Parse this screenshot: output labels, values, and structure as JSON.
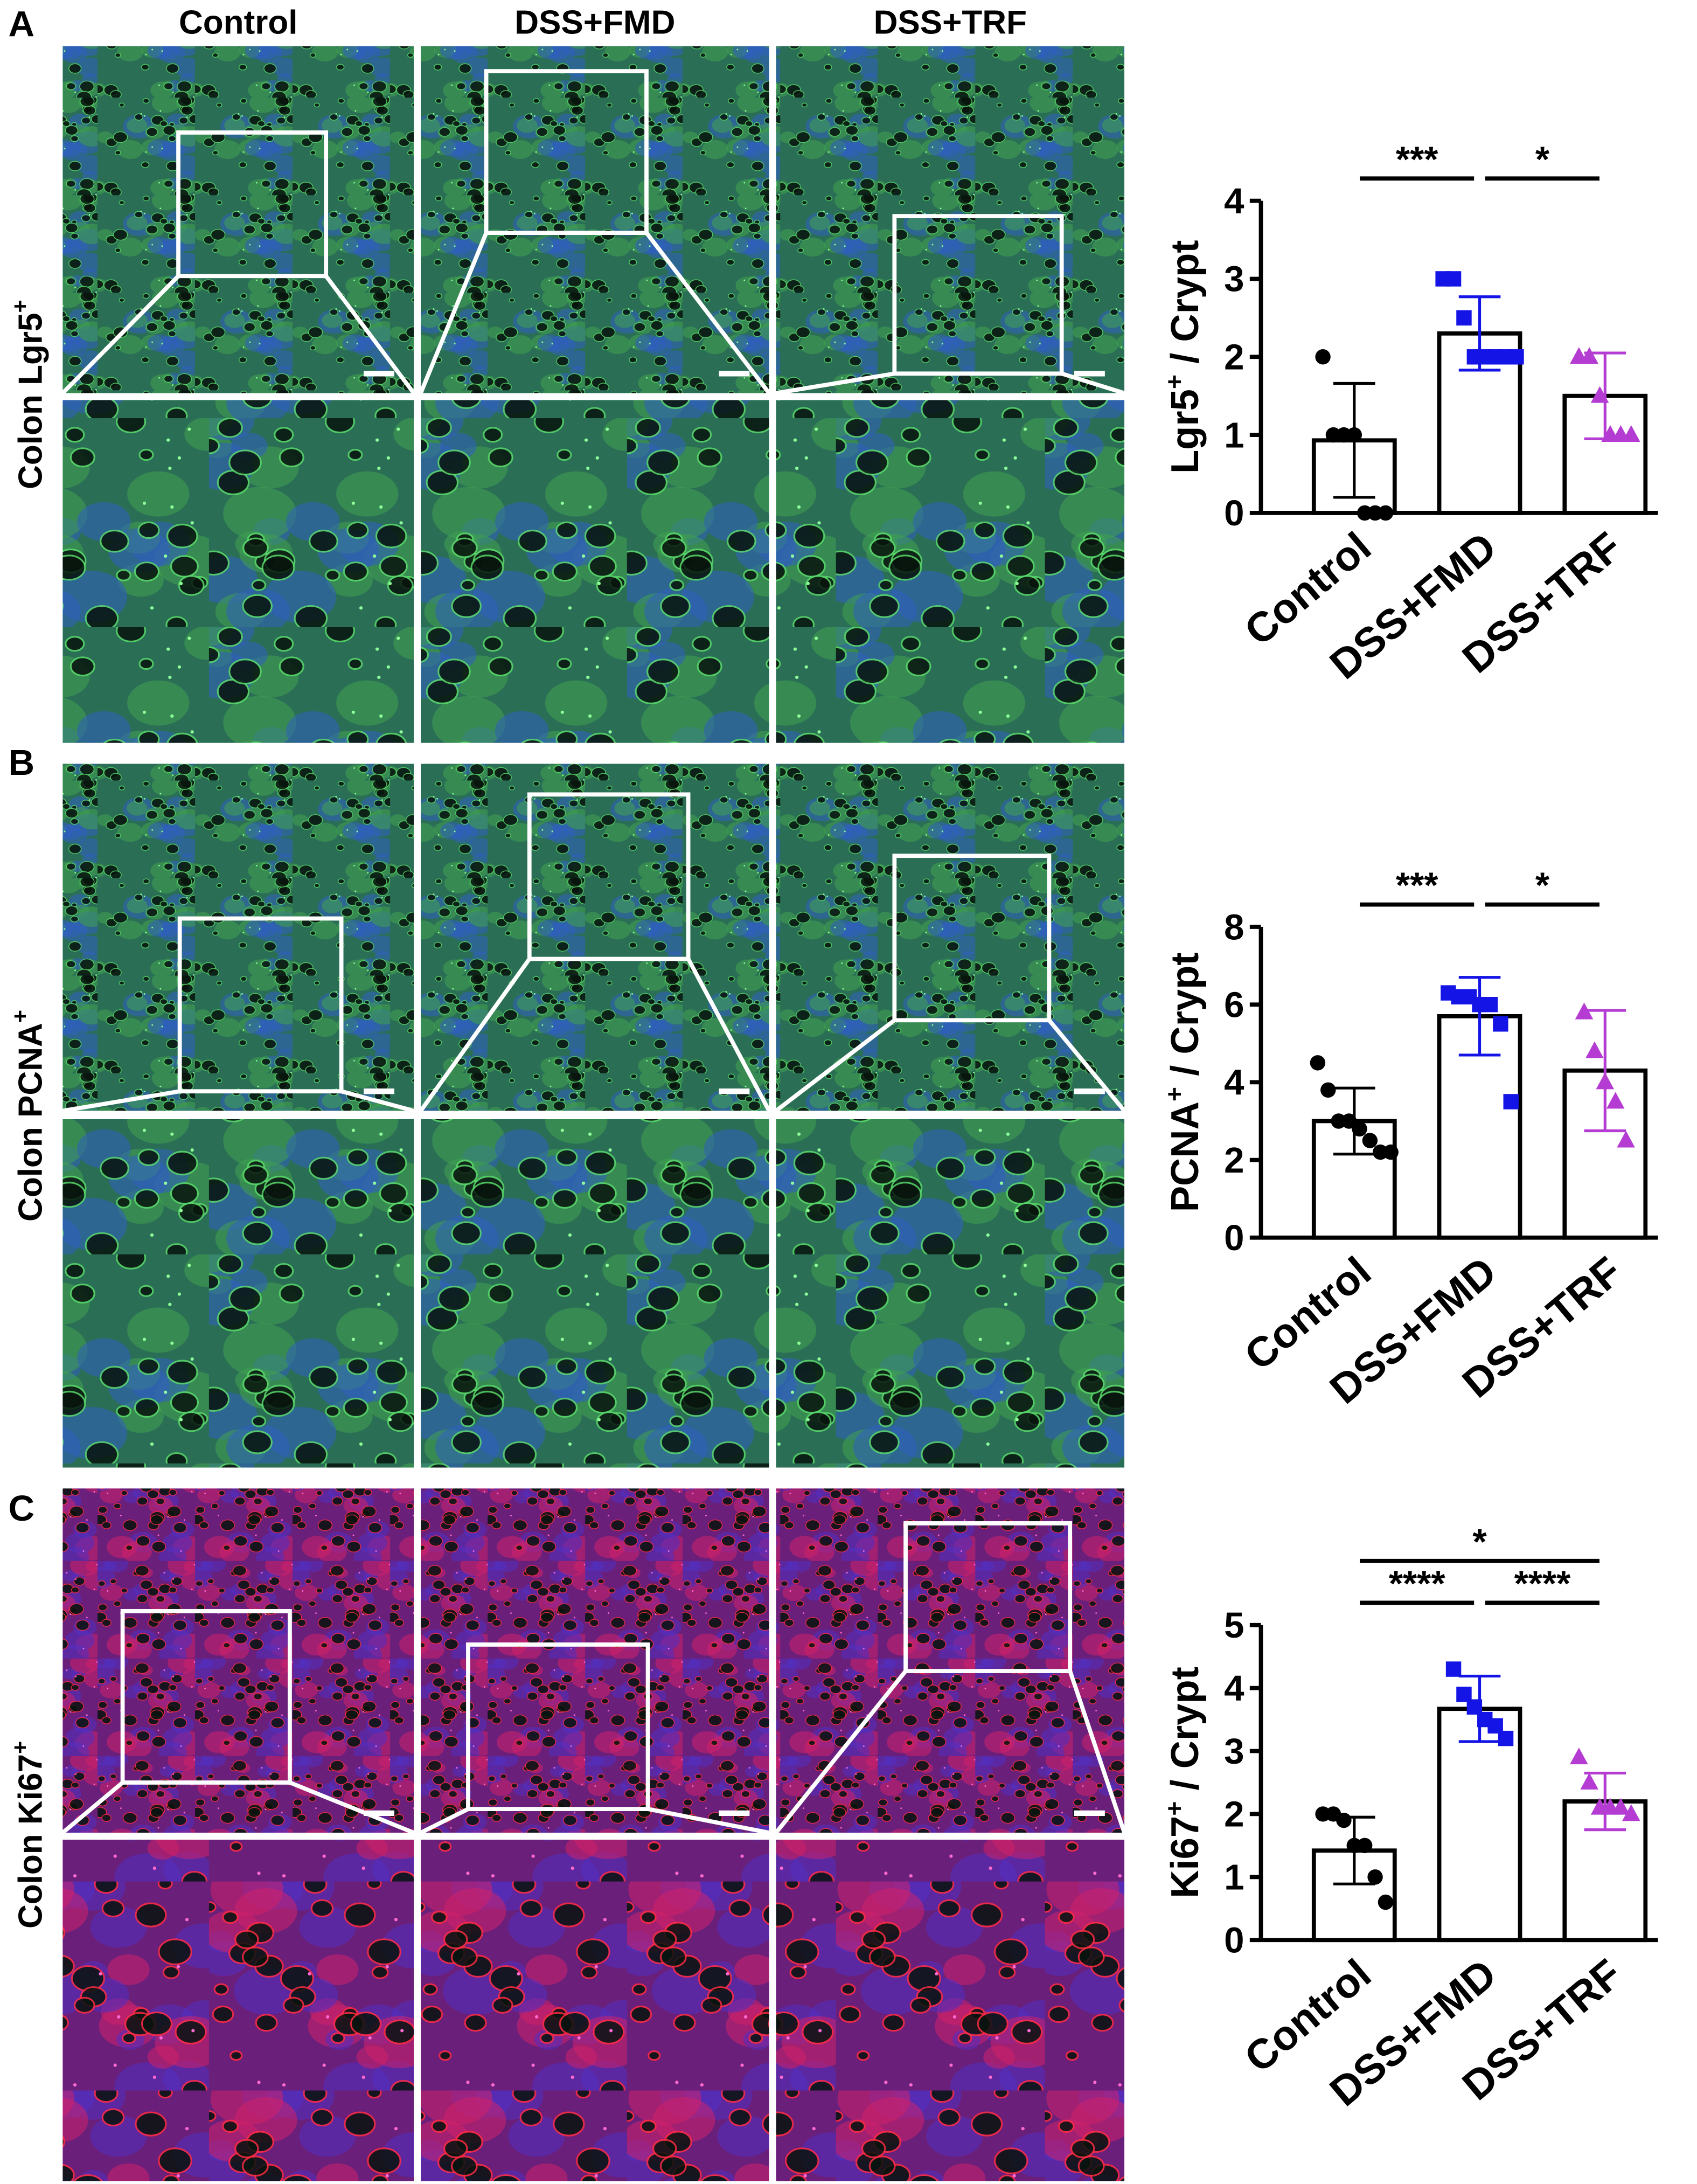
{
  "figure": {
    "columns": [
      "Control",
      "DSS+FMD",
      "DSS+TRF"
    ],
    "panels": [
      {
        "letter": "A",
        "stain": "Colon Lgr5",
        "sup": "+"
      },
      {
        "letter": "B",
        "stain": "Colon PCNA",
        "sup": "+"
      },
      {
        "letter": "C",
        "stain": "Colon Ki67",
        "sup": "+"
      }
    ]
  },
  "chart_data": [
    {
      "type": "bar",
      "ylabel": [
        "Lgr5",
        "+",
        " / Crypt"
      ],
      "categories": [
        "Control",
        "DSS+FMD",
        "DSS+TRF"
      ],
      "values": [
        0.93,
        2.3,
        1.5
      ],
      "errors": [
        0.73,
        0.47,
        0.55
      ],
      "points": [
        [
          2.0,
          1.0,
          1.0,
          1.0,
          0,
          0,
          0
        ],
        [
          3.0,
          3.0,
          2.5,
          2.0,
          2.0,
          2.0,
          2.0,
          2.0
        ],
        [
          2.0,
          2.0,
          1.5,
          1.0,
          1.0,
          1.0
        ]
      ],
      "colors": [
        "#000000",
        "#1414e6",
        "#b43cd2"
      ],
      "markers": [
        "circle",
        "square",
        "triangle"
      ],
      "ylim": [
        0,
        4
      ],
      "yticks": [
        0,
        1,
        2,
        3,
        4
      ],
      "significance": [
        {
          "between": [
            "Control",
            "DSS+FMD"
          ],
          "label": "***"
        },
        {
          "between": [
            "DSS+FMD",
            "DSS+TRF"
          ],
          "label": "*"
        }
      ]
    },
    {
      "type": "bar",
      "ylabel": [
        "PCNA",
        "+",
        " / Crypt"
      ],
      "categories": [
        "Control",
        "DSS+FMD",
        "DSS+TRF"
      ],
      "values": [
        3.0,
        5.7,
        4.3
      ],
      "errors": [
        0.85,
        1.0,
        1.55
      ],
      "points": [
        [
          4.5,
          3.8,
          3.0,
          3.0,
          2.8,
          2.5,
          2.2,
          2.2
        ],
        [
          6.3,
          6.2,
          6.2,
          6.0,
          6.0,
          5.5,
          3.5
        ],
        [
          5.8,
          4.8,
          4.0,
          3.5,
          2.5
        ]
      ],
      "colors": [
        "#000000",
        "#1414e6",
        "#b43cd2"
      ],
      "markers": [
        "circle",
        "square",
        "triangle"
      ],
      "ylim": [
        0,
        8
      ],
      "yticks": [
        0,
        2,
        4,
        6,
        8
      ],
      "significance": [
        {
          "between": [
            "Control",
            "DSS+FMD"
          ],
          "label": "***"
        },
        {
          "between": [
            "DSS+FMD",
            "DSS+TRF"
          ],
          "label": "*"
        }
      ]
    },
    {
      "type": "bar",
      "ylabel": [
        "Ki67",
        "+",
        " / Crypt"
      ],
      "categories": [
        "Control",
        "DSS+FMD",
        "DSS+TRF"
      ],
      "values": [
        1.42,
        3.67,
        2.2
      ],
      "errors": [
        0.53,
        0.52,
        0.45
      ],
      "points": [
        [
          2.0,
          2.0,
          1.9,
          1.5,
          1.5,
          1.0,
          0.6
        ],
        [
          4.3,
          3.9,
          3.7,
          3.5,
          3.4,
          3.2
        ],
        [
          2.9,
          2.5,
          2.1,
          2.1,
          2.1,
          2.0
        ]
      ],
      "colors": [
        "#000000",
        "#1414e6",
        "#b43cd2"
      ],
      "markers": [
        "circle",
        "square",
        "triangle"
      ],
      "ylim": [
        0,
        5
      ],
      "yticks": [
        0,
        1,
        2,
        3,
        4,
        5
      ],
      "significance": [
        {
          "between": [
            "Control",
            "DSS+FMD"
          ],
          "label": "****"
        },
        {
          "between": [
            "DSS+FMD",
            "DSS+TRF"
          ],
          "label": "****"
        },
        {
          "between": [
            "Control",
            "DSS+TRF"
          ],
          "label": "*"
        }
      ]
    }
  ]
}
